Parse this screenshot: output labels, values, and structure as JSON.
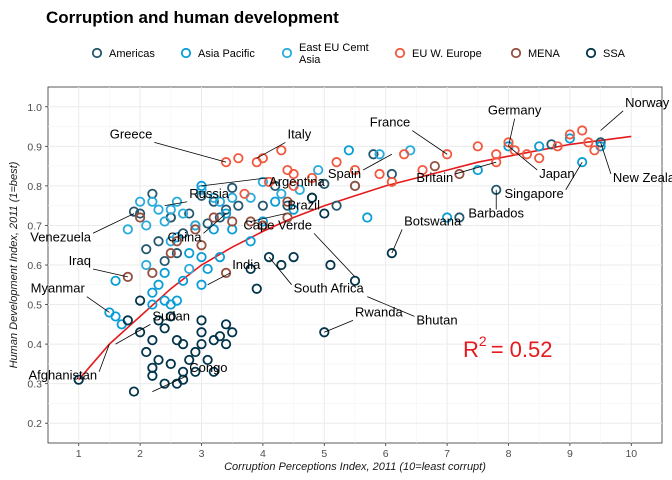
{
  "chart_data": {
    "type": "scatter",
    "title": "Corruption and human development",
    "xlabel": "Corruption Perceptions Index, 2011 (10=least corrupt)",
    "ylabel": "Human Development Index, 2011 (1=best)",
    "xlim": [
      0.5,
      10.5
    ],
    "ylim": [
      0.15,
      1.05
    ],
    "xticks": [
      "1",
      "2",
      "3",
      "4",
      "5",
      "6",
      "7",
      "8",
      "9",
      "10"
    ],
    "yticks": [
      "0.2",
      "0.3",
      "0.4",
      "0.5",
      "0.6",
      "0.7",
      "0.8",
      "0.9",
      "1.0"
    ],
    "xtick_values": [
      1,
      2,
      3,
      4,
      5,
      6,
      7,
      8,
      9,
      10
    ],
    "ytick_values": [
      0.2,
      0.3,
      0.4,
      0.5,
      0.6,
      0.7,
      0.8,
      0.9,
      1.0
    ],
    "legend_position": "top",
    "grid": true,
    "annotation": {
      "r2_base": "R",
      "r2_exp": "2",
      "r2_rest": "= 0.52",
      "color": "#E41A1C"
    },
    "trend": {
      "color": "#E41A1C",
      "x": [
        1.0,
        1.5,
        2.0,
        2.5,
        3.0,
        3.5,
        4.0,
        4.5,
        5.0,
        5.5,
        6.0,
        6.5,
        7.0,
        7.5,
        8.0,
        8.5,
        9.0,
        9.5,
        10.0
      ],
      "y": [
        0.31,
        0.4,
        0.47,
        0.54,
        0.6,
        0.645,
        0.685,
        0.72,
        0.75,
        0.775,
        0.8,
        0.82,
        0.84,
        0.86,
        0.875,
        0.89,
        0.905,
        0.915,
        0.925
      ]
    },
    "series": [
      {
        "name": "Americas",
        "color": "#24576D",
        "points": [
          [
            1.9,
            0.735
          ],
          [
            2.2,
            0.78
          ],
          [
            2.5,
            0.72
          ],
          [
            2.8,
            0.73
          ],
          [
            3.0,
            0.775
          ],
          [
            3.2,
            0.76
          ],
          [
            3.4,
            0.74
          ],
          [
            3.5,
            0.795
          ],
          [
            4.0,
            0.75
          ],
          [
            2.6,
            0.63
          ],
          [
            2.3,
            0.66
          ],
          [
            2.7,
            0.68
          ],
          [
            2.9,
            0.7
          ],
          [
            3.1,
            0.705
          ],
          [
            2.4,
            0.61
          ],
          [
            2.0,
            0.73
          ],
          [
            2.1,
            0.64
          ],
          [
            3.3,
            0.72
          ],
          [
            2.5,
            0.72
          ],
          [
            3.6,
            0.75
          ],
          [
            4.2,
            0.8
          ],
          [
            5.0,
            0.805
          ],
          [
            5.8,
            0.88
          ],
          [
            6.1,
            0.83
          ],
          [
            7.2,
            0.72
          ],
          [
            7.8,
            0.79
          ],
          [
            8.7,
            0.905
          ],
          [
            9.5,
            0.91
          ],
          [
            4.4,
            0.75
          ],
          [
            5.2,
            0.75
          ]
        ]
      },
      {
        "name": "Asia Pacific",
        "color": "#099DD7",
        "points": [
          [
            1.5,
            0.48
          ],
          [
            1.6,
            0.56
          ],
          [
            1.7,
            0.45
          ],
          [
            2.2,
            0.5
          ],
          [
            2.3,
            0.55
          ],
          [
            2.4,
            0.58
          ],
          [
            2.5,
            0.5
          ],
          [
            2.6,
            0.51
          ],
          [
            2.7,
            0.56
          ],
          [
            3.0,
            0.55
          ],
          [
            3.1,
            0.59
          ],
          [
            3.2,
            0.69
          ],
          [
            3.3,
            0.62
          ],
          [
            3.0,
            0.62
          ],
          [
            3.4,
            0.73
          ],
          [
            3.5,
            0.69
          ],
          [
            2.8,
            0.63
          ],
          [
            2.4,
            0.51
          ],
          [
            3.8,
            0.66
          ],
          [
            4.2,
            0.76
          ],
          [
            4.0,
            0.71
          ],
          [
            4.5,
            0.74
          ],
          [
            5.4,
            0.89
          ],
          [
            5.7,
            0.72
          ],
          [
            7.0,
            0.72
          ],
          [
            7.5,
            0.84
          ],
          [
            8.0,
            0.9
          ],
          [
            8.5,
            0.9
          ],
          [
            9.0,
            0.92
          ],
          [
            9.2,
            0.86
          ],
          [
            9.5,
            0.9
          ],
          [
            3.0,
            0.8
          ],
          [
            2.2,
            0.53
          ],
          [
            1.6,
            0.47
          ]
        ]
      },
      {
        "name": "East EU Cemt Asia",
        "color": "#28AADC",
        "points": [
          [
            2.0,
            0.76
          ],
          [
            2.1,
            0.7
          ],
          [
            2.2,
            0.76
          ],
          [
            2.3,
            0.74
          ],
          [
            2.5,
            0.74
          ],
          [
            2.6,
            0.76
          ],
          [
            2.7,
            0.73
          ],
          [
            2.9,
            0.7
          ],
          [
            3.0,
            0.79
          ],
          [
            3.2,
            0.77
          ],
          [
            3.3,
            0.76
          ],
          [
            3.5,
            0.77
          ],
          [
            3.8,
            0.77
          ],
          [
            4.0,
            0.81
          ],
          [
            4.3,
            0.78
          ],
          [
            4.6,
            0.79
          ],
          [
            4.9,
            0.84
          ],
          [
            5.5,
            0.8
          ],
          [
            5.9,
            0.88
          ],
          [
            6.4,
            0.89
          ],
          [
            2.4,
            0.71
          ],
          [
            2.6,
            0.67
          ],
          [
            1.8,
            0.69
          ],
          [
            2.1,
            0.6
          ],
          [
            2.5,
            0.66
          ],
          [
            2.8,
            0.59
          ]
        ]
      },
      {
        "name": "EU W. Europe",
        "color": "#F2583F",
        "points": [
          [
            3.4,
            0.86
          ],
          [
            3.9,
            0.86
          ],
          [
            4.0,
            0.87
          ],
          [
            4.1,
            0.81
          ],
          [
            4.4,
            0.84
          ],
          [
            4.5,
            0.83
          ],
          [
            4.8,
            0.82
          ],
          [
            5.2,
            0.86
          ],
          [
            5.5,
            0.84
          ],
          [
            5.9,
            0.83
          ],
          [
            6.1,
            0.81
          ],
          [
            6.3,
            0.88
          ],
          [
            6.6,
            0.84
          ],
          [
            7.0,
            0.88
          ],
          [
            7.5,
            0.9
          ],
          [
            7.8,
            0.86
          ],
          [
            8.0,
            0.91
          ],
          [
            8.1,
            0.89
          ],
          [
            8.5,
            0.87
          ],
          [
            8.8,
            0.9
          ],
          [
            9.0,
            0.93
          ],
          [
            9.2,
            0.94
          ],
          [
            9.3,
            0.91
          ],
          [
            9.4,
            0.89
          ],
          [
            3.6,
            0.87
          ],
          [
            4.3,
            0.89
          ],
          [
            7.8,
            0.88
          ],
          [
            8.3,
            0.88
          ],
          [
            3.7,
            0.78
          ],
          [
            4.5,
            0.8
          ]
        ]
      },
      {
        "name": "MENA",
        "color": "#96503F",
        "points": [
          [
            1.8,
            0.57
          ],
          [
            2.2,
            0.58
          ],
          [
            2.5,
            0.63
          ],
          [
            2.6,
            0.66
          ],
          [
            2.9,
            0.69
          ],
          [
            3.0,
            0.65
          ],
          [
            3.2,
            0.72
          ],
          [
            3.5,
            0.71
          ],
          [
            3.8,
            0.71
          ],
          [
            4.0,
            0.7
          ],
          [
            4.4,
            0.76
          ],
          [
            4.8,
            0.77
          ],
          [
            5.5,
            0.8
          ],
          [
            6.8,
            0.85
          ],
          [
            7.2,
            0.83
          ],
          [
            2.0,
            0.72
          ],
          [
            3.4,
            0.58
          ],
          [
            4.4,
            0.72
          ]
        ]
      },
      {
        "name": "SSA",
        "color": "#01344A",
        "points": [
          [
            1.0,
            0.31
          ],
          [
            1.9,
            0.28
          ],
          [
            2.0,
            0.43
          ],
          [
            2.1,
            0.38
          ],
          [
            2.2,
            0.34
          ],
          [
            2.2,
            0.41
          ],
          [
            2.3,
            0.36
          ],
          [
            2.4,
            0.44
          ],
          [
            2.4,
            0.3
          ],
          [
            2.5,
            0.35
          ],
          [
            2.6,
            0.41
          ],
          [
            2.7,
            0.4
          ],
          [
            2.7,
            0.33
          ],
          [
            2.8,
            0.36
          ],
          [
            2.9,
            0.38
          ],
          [
            3.0,
            0.4
          ],
          [
            3.0,
            0.43
          ],
          [
            3.1,
            0.36
          ],
          [
            3.2,
            0.33
          ],
          [
            3.3,
            0.42
          ],
          [
            3.4,
            0.45
          ],
          [
            3.4,
            0.4
          ],
          [
            3.5,
            0.43
          ],
          [
            3.0,
            0.46
          ],
          [
            2.3,
            0.46
          ],
          [
            2.5,
            0.47
          ],
          [
            2.0,
            0.51
          ],
          [
            1.8,
            0.46
          ],
          [
            2.2,
            0.32
          ],
          [
            2.6,
            0.3
          ],
          [
            3.9,
            0.54
          ],
          [
            4.1,
            0.62
          ],
          [
            4.3,
            0.6
          ],
          [
            4.5,
            0.62
          ],
          [
            5.0,
            0.73
          ],
          [
            5.1,
            0.6
          ],
          [
            5.5,
            0.56
          ],
          [
            6.1,
            0.63
          ],
          [
            3.8,
            0.59
          ],
          [
            4.8,
            0.77
          ],
          [
            5.0,
            0.43
          ],
          [
            2.7,
            0.31
          ],
          [
            2.9,
            0.33
          ],
          [
            3.2,
            0.41
          ]
        ]
      }
    ],
    "labels": [
      {
        "text": "Norway",
        "px": 9.5,
        "py": 0.94,
        "tx": 9.9,
        "ty": 1.0
      },
      {
        "text": "Germany",
        "px": 8.0,
        "py": 0.9,
        "tx": 8.1,
        "ty": 0.98
      },
      {
        "text": "France",
        "px": 7.0,
        "py": 0.88,
        "tx": 6.4,
        "ty": 0.95
      },
      {
        "text": "Italy",
        "px": 3.9,
        "py": 0.87,
        "tx": 4.4,
        "ty": 0.92
      },
      {
        "text": "Greece",
        "px": 3.4,
        "py": 0.86,
        "tx": 2.2,
        "ty": 0.92
      },
      {
        "text": "Spain",
        "px": 6.1,
        "py": 0.88,
        "tx": 5.6,
        "ty": 0.82
      },
      {
        "text": "Britain",
        "px": 7.8,
        "py": 0.86,
        "tx": 7.1,
        "ty": 0.81
      },
      {
        "text": "Japan",
        "px": 8.0,
        "py": 0.9,
        "tx": 8.5,
        "ty": 0.82
      },
      {
        "text": "New Zealand",
        "px": 9.5,
        "py": 0.91,
        "tx": 9.7,
        "ty": 0.81
      },
      {
        "text": "Singapore",
        "px": 9.2,
        "py": 0.86,
        "tx": 8.9,
        "ty": 0.77
      },
      {
        "text": "Barbados",
        "px": 7.8,
        "py": 0.79,
        "tx": 7.8,
        "ty": 0.72
      },
      {
        "text": "Argentina",
        "px": 3.0,
        "py": 0.8,
        "tx": 4.1,
        "ty": 0.8
      },
      {
        "text": "Russia",
        "px": 2.4,
        "py": 0.75,
        "tx": 2.8,
        "ty": 0.77
      },
      {
        "text": "Brazil",
        "px": 3.8,
        "py": 0.71,
        "tx": 4.4,
        "ty": 0.74
      },
      {
        "text": "Botswana",
        "px": 6.1,
        "py": 0.63,
        "tx": 6.3,
        "ty": 0.7
      },
      {
        "text": "Cape Verde",
        "px": 5.5,
        "py": 0.57,
        "tx": 4.8,
        "ty": 0.69
      },
      {
        "text": "Venezuela",
        "px": 1.9,
        "py": 0.73,
        "tx": 1.2,
        "ty": 0.66
      },
      {
        "text": "China",
        "px": 3.4,
        "py": 0.73,
        "tx": 3.0,
        "ty": 0.66
      },
      {
        "text": "Iraq",
        "px": 1.8,
        "py": 0.57,
        "tx": 1.2,
        "ty": 0.6
      },
      {
        "text": "India",
        "px": 3.1,
        "py": 0.55,
        "tx": 3.5,
        "ty": 0.59
      },
      {
        "text": "South Africa",
        "px": 4.1,
        "py": 0.62,
        "tx": 4.5,
        "ty": 0.53
      },
      {
        "text": "Myanmar",
        "px": 1.5,
        "py": 0.48,
        "tx": 1.1,
        "ty": 0.53
      },
      {
        "text": "Rwanda",
        "px": 5.0,
        "py": 0.43,
        "tx": 5.5,
        "ty": 0.47
      },
      {
        "text": "Bhutan",
        "px": 5.7,
        "py": 0.52,
        "tx": 6.5,
        "ty": 0.45
      },
      {
        "text": "Sudan",
        "px": 1.6,
        "py": 0.4,
        "tx": 2.2,
        "ty": 0.46
      },
      {
        "text": "Afghanistan",
        "px": 1.5,
        "py": 0.4,
        "tx": 1.3,
        "ty": 0.31
      },
      {
        "text": "Congo",
        "px": 2.2,
        "py": 0.28,
        "tx": 2.8,
        "ty": 0.33
      }
    ]
  }
}
